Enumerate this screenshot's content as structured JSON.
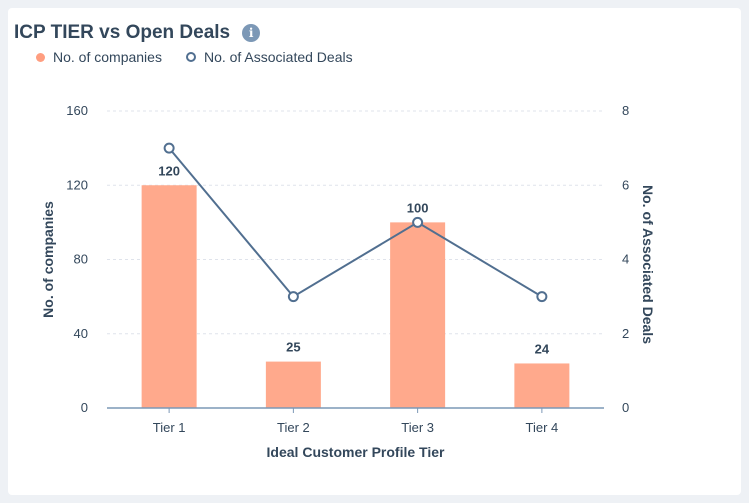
{
  "header": {
    "title": "ICP TIER vs Open Deals",
    "info_icon": "info-icon"
  },
  "legend": {
    "companies_label": "No. of companies",
    "deals_label": "No. of Associated Deals"
  },
  "colors": {
    "bar": "#ffa98c",
    "line": "#516f90",
    "text": "#33475b",
    "grid": "#dfe3eb"
  },
  "chart_data": {
    "type": "bar",
    "categories": [
      "Tier 1",
      "Tier 2",
      "Tier 3",
      "Tier 4"
    ],
    "series": [
      {
        "name": "No. of companies",
        "type": "bar",
        "axis": "left",
        "values": [
          120,
          25,
          100,
          24
        ]
      },
      {
        "name": "No. of Associated Deals",
        "type": "line",
        "axis": "right",
        "values": [
          7,
          3,
          5,
          3
        ]
      }
    ],
    "xlabel": "Ideal Customer Profile Tier",
    "ylabel": "No. of companies",
    "y2label": "No. of Associated Deals",
    "ylim": [
      0,
      160
    ],
    "y2lim": [
      0,
      8
    ],
    "yticks": [
      0,
      40,
      80,
      120,
      160
    ],
    "y2ticks": [
      0,
      2,
      4,
      6,
      8
    ],
    "data_labels": [
      "120",
      "25",
      "100",
      "24"
    ],
    "grid": true,
    "legend_position": "top-left"
  }
}
